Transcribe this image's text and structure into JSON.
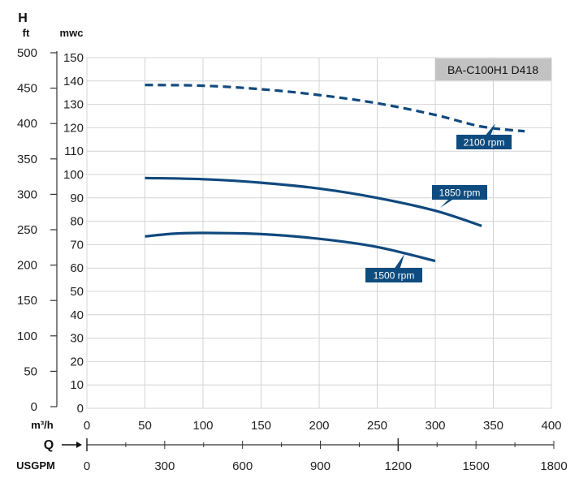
{
  "chart_data": {
    "type": "line",
    "title": "BA-C100H1 D418",
    "x_axis": {
      "label": "m³/h",
      "range": [
        0,
        400
      ],
      "ticks": [
        0,
        50,
        100,
        150,
        200,
        250,
        300,
        350,
        400
      ],
      "grid": true
    },
    "secondary_x_axis": {
      "label": "USGPM",
      "range": [
        0,
        1800
      ],
      "ticks": [
        0,
        300,
        600,
        900,
        1200,
        1500,
        1800
      ]
    },
    "flow_label": "Q",
    "head_label": "H",
    "y_axis": {
      "label": "mwc",
      "range": [
        0,
        150
      ],
      "ticks": [
        0,
        10,
        20,
        30,
        40,
        50,
        60,
        70,
        80,
        90,
        100,
        110,
        120,
        130,
        140,
        150
      ],
      "grid": true
    },
    "secondary_y_axis": {
      "label": "ft",
      "range": [
        0,
        492
      ],
      "ticks": [
        0,
        50,
        100,
        150,
        200,
        250,
        300,
        350,
        400,
        450,
        500
      ]
    },
    "series": [
      {
        "name": "2100 rpm",
        "style": "dashed",
        "color": "#10497e",
        "x": [
          50,
          100,
          150,
          200,
          250,
          300,
          340,
          377
        ],
        "y": [
          138.3,
          138,
          136.5,
          134,
          130.5,
          125.5,
          120.5,
          118.5
        ]
      },
      {
        "name": "1850 rpm",
        "style": "solid",
        "color": "#10497e",
        "x": [
          50,
          100,
          150,
          200,
          250,
          300,
          340
        ],
        "y": [
          98.5,
          98,
          96.5,
          94,
          90,
          84.5,
          78
        ]
      },
      {
        "name": "1500 rpm",
        "style": "solid",
        "color": "#10497e",
        "x": [
          50,
          75,
          100,
          150,
          200,
          250,
          300
        ],
        "y": [
          73.5,
          74.7,
          75,
          74.5,
          72.5,
          69,
          63
        ]
      }
    ],
    "legend": "inline labels",
    "colors": {
      "curve": "#10497e",
      "label_bg": "#0e4c7f",
      "title_bg": "#c2c2c2",
      "grid": "#d4d4d4"
    }
  }
}
